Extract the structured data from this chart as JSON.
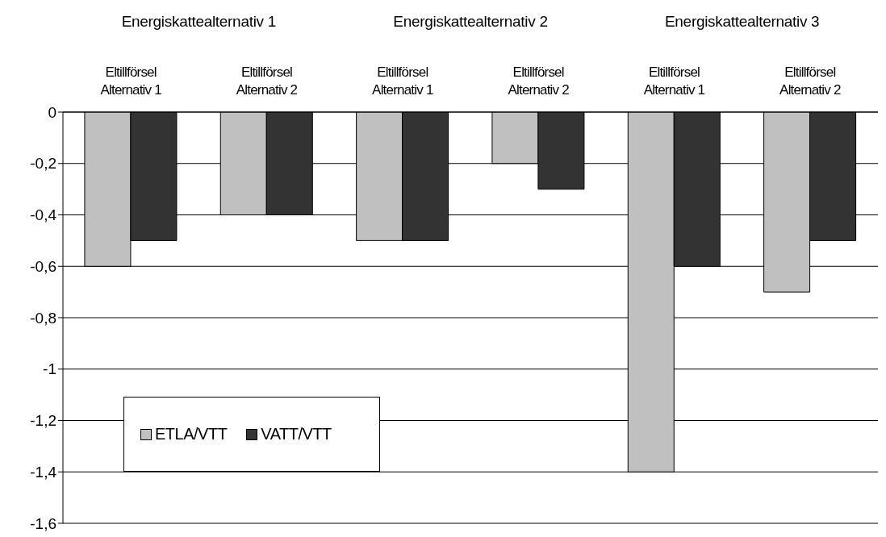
{
  "chart_data": {
    "type": "bar",
    "categories": [
      "Eltillförsel Alternativ 1",
      "Eltillförsel Alternativ 2",
      "Eltillförsel Alternativ 1",
      "Eltillförsel Alternativ 2",
      "Eltillförsel Alternativ 1",
      "Eltillförsel Alternativ 2"
    ],
    "annotations": [
      "Energiskattealternativ 1",
      "Energiskattealternativ 2",
      "Energiskattealternativ 3"
    ],
    "series": [
      {
        "name": "ETLA/VTT",
        "color": "#c0c0c0",
        "values": [
          -0.6,
          -0.4,
          -0.5,
          -0.2,
          -1.4,
          -0.7
        ]
      },
      {
        "name": "VATT/VTT",
        "color": "#333333",
        "values": [
          -0.5,
          -0.4,
          -0.5,
          -0.3,
          -0.6,
          -0.5
        ]
      }
    ],
    "ylim": [
      -1.6,
      0
    ],
    "yticks": [
      {
        "value": -1.6,
        "label": "-1,6"
      },
      {
        "value": -1.4,
        "label": "-1,4"
      },
      {
        "value": -1.2,
        "label": "-1,2"
      },
      {
        "value": -1,
        "label": "-1"
      },
      {
        "value": -0.8,
        "label": "-0,8"
      },
      {
        "value": -0.6,
        "label": "-0,6"
      },
      {
        "value": -0.4,
        "label": "-0,4"
      },
      {
        "value": -0.2,
        "label": "-0,2"
      },
      0
    ],
    "grid": "y",
    "legend": "bottom left"
  }
}
